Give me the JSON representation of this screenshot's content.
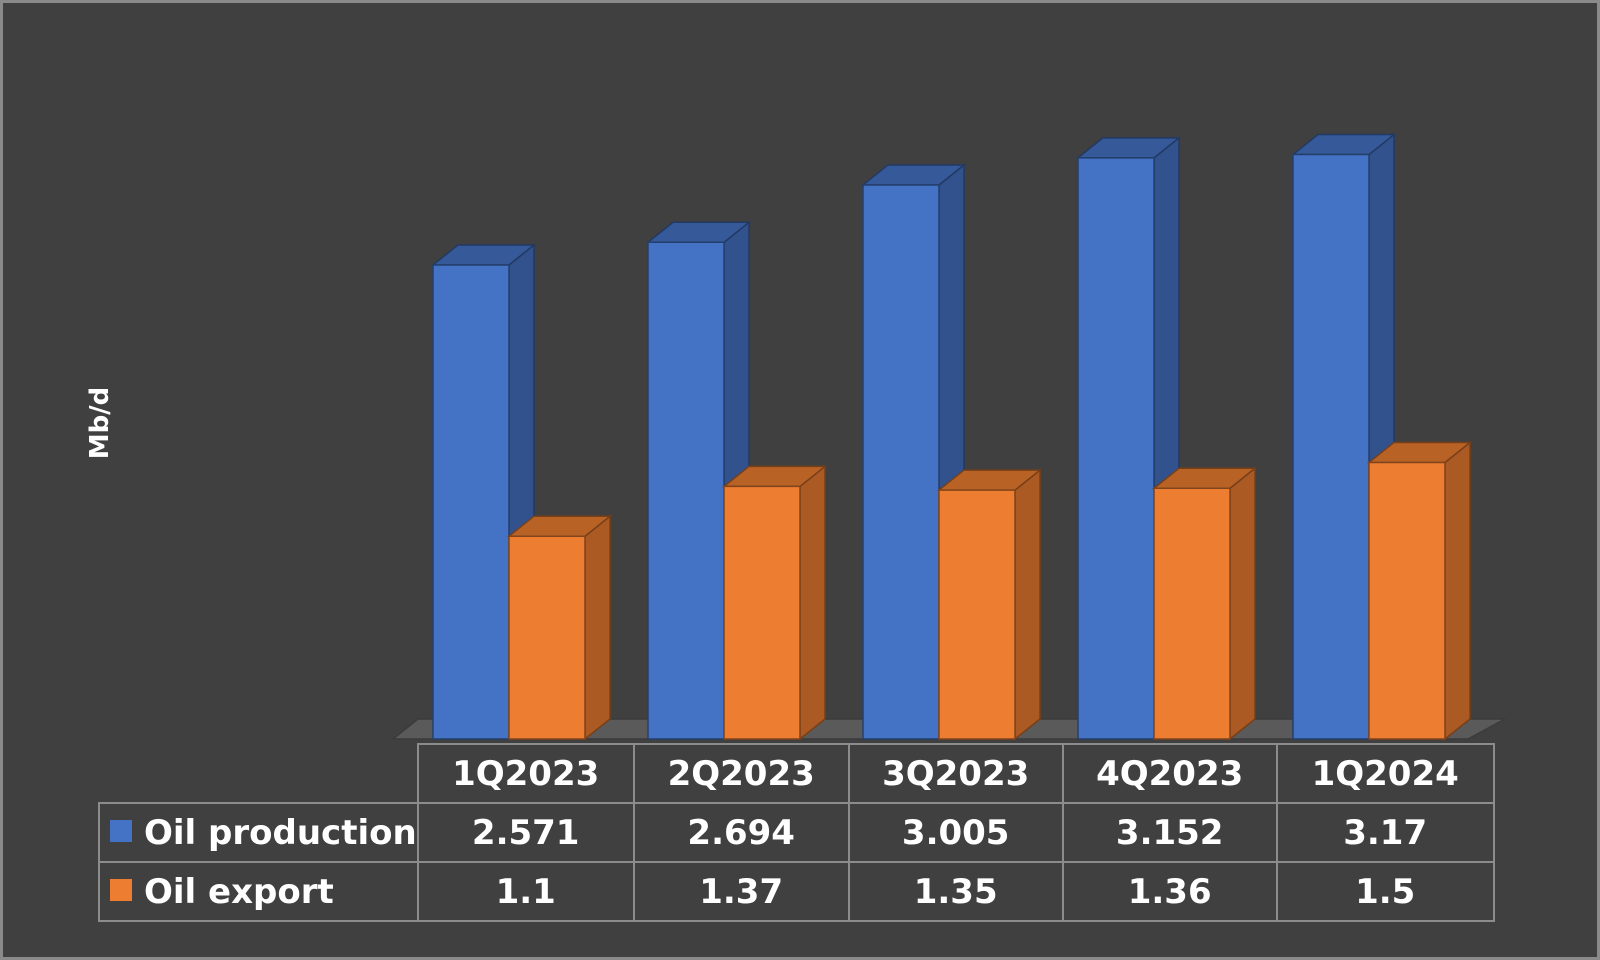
{
  "chart_data": {
    "type": "bar",
    "ylabel": "Mb/d",
    "xlabel": "",
    "title": "",
    "categories": [
      "1Q2023",
      "2Q2023",
      "3Q2023",
      "4Q2023",
      "1Q2024"
    ],
    "series": [
      {
        "name": "Oil production",
        "color": "#4472C4",
        "values": [
          2.571,
          2.694,
          3.005,
          3.152,
          3.17
        ],
        "labels": [
          "2.571",
          "2.694",
          "3.005",
          "3.152",
          "3.17"
        ]
      },
      {
        "name": "Oil export",
        "color": "#ED7D31",
        "values": [
          1.1,
          1.37,
          1.35,
          1.36,
          1.5
        ],
        "labels": [
          "1.1",
          "1.37",
          "1.35",
          "1.36",
          "1.5"
        ]
      }
    ],
    "ylim": [
      0,
      3.2
    ],
    "grid": false,
    "legend": "data table",
    "style": "3d-clustered-column"
  }
}
